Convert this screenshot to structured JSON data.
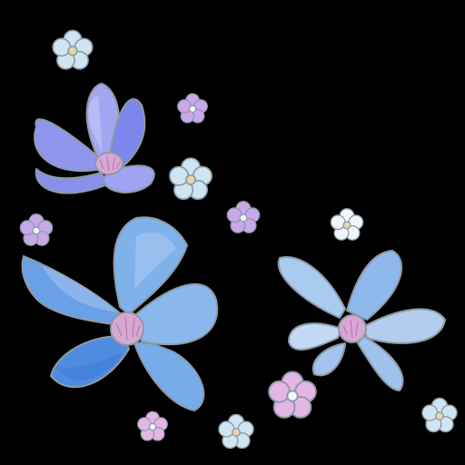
{
  "palette": {
    "background": "#000000",
    "outline": "#8e9aa6",
    "petal_blue": "#6fa6e6",
    "petal_blue_light": "#a9c8f0",
    "petal_blue_deep": "#3f7fd8",
    "petal_periwinkle": "#8f96ee",
    "petal_periwinkle_light": "#c2c3f6",
    "petal_pale": "#b4cdee",
    "center_pink": "#d8a8d4",
    "blossom_lilac": "#c9a8ea",
    "blossom_pink": "#e3b6e6",
    "blossom_mint": "#cfe6f2",
    "blossom_white": "#f2f6fb"
  },
  "subjects": [
    {
      "kind": "flower",
      "icon": "large-blue-flower"
    },
    {
      "kind": "flower",
      "icon": "periwinkle-flower"
    },
    {
      "kind": "flower",
      "icon": "pale-blue-flower"
    },
    {
      "kind": "blossom",
      "icon": "small-blossom",
      "count": 10
    }
  ]
}
